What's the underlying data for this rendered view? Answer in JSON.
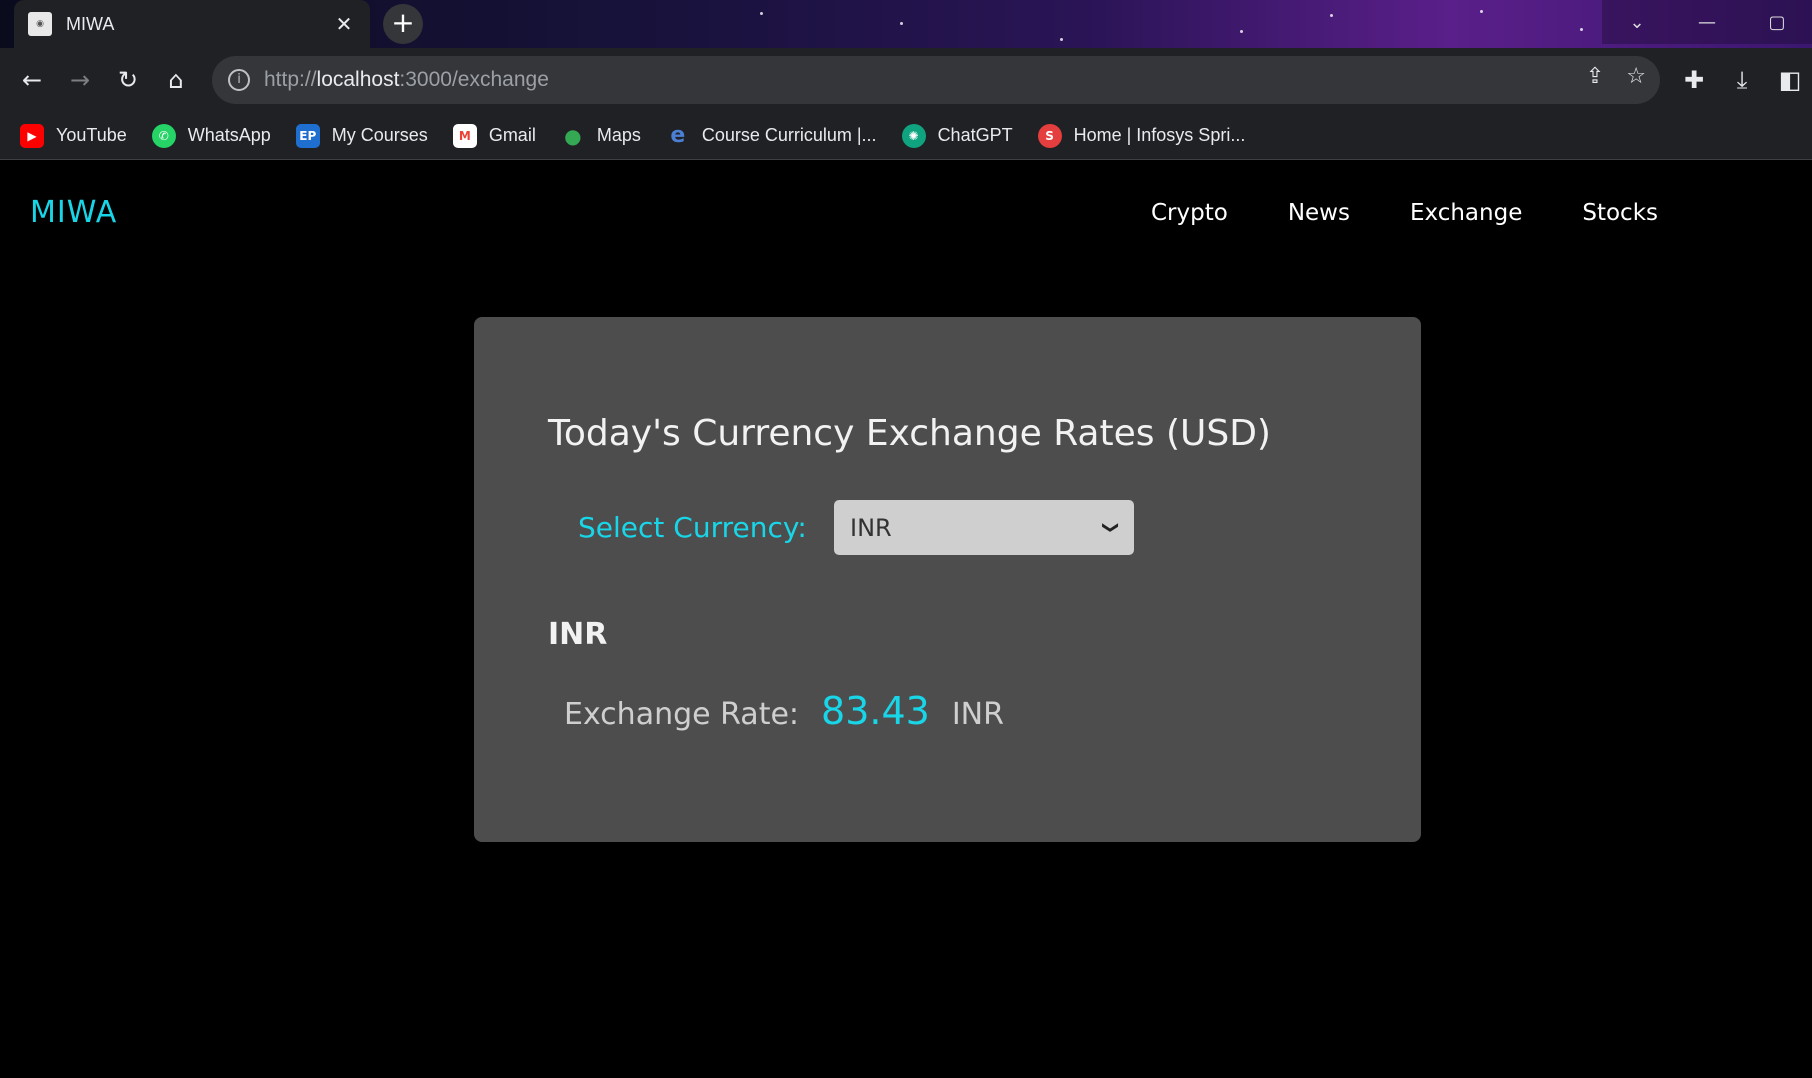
{
  "browser": {
    "tab": {
      "title": "MIWA",
      "close": "✕"
    },
    "new_tab": "+",
    "url": {
      "scheme": "http://",
      "host": "localhost",
      "rest": ":3000/exchange"
    },
    "bookmarks": [
      {
        "label": "YouTube",
        "icon": "youtube-icon",
        "color": "#ff0000",
        "glyph": "▶"
      },
      {
        "label": "WhatsApp",
        "icon": "whatsapp-icon",
        "color": "#25d366",
        "glyph": "✆"
      },
      {
        "label": "My Courses",
        "icon": "courses-icon",
        "color": "#1f6fd1",
        "glyph": "EP"
      },
      {
        "label": "Gmail",
        "icon": "gmail-icon",
        "color": "#ea4335",
        "glyph": "M"
      },
      {
        "label": "Maps",
        "icon": "maps-icon",
        "color": "#34a853",
        "glyph": "●"
      },
      {
        "label": "Course Curriculum |...",
        "icon": "curriculum-icon",
        "color": "#2b6cb0",
        "glyph": "e"
      },
      {
        "label": "ChatGPT",
        "icon": "chatgpt-icon",
        "color": "#10a37f",
        "glyph": "✺"
      },
      {
        "label": "Home | Infosys Spri...",
        "icon": "infosys-icon",
        "color": "#e53e3e",
        "glyph": "S"
      }
    ]
  },
  "app": {
    "logo": "MIWA",
    "nav": [
      "Crypto",
      "News",
      "Exchange",
      "Stocks"
    ],
    "accent_color": "#18d6e8"
  },
  "exchange": {
    "title": "Today's Currency Exchange Rates (USD)",
    "select_label": "Select Currency:",
    "selected_currency": "INR",
    "currency_heading": "INR",
    "rate_label": "Exchange Rate:",
    "rate_value": "83.43",
    "rate_unit": "INR"
  }
}
